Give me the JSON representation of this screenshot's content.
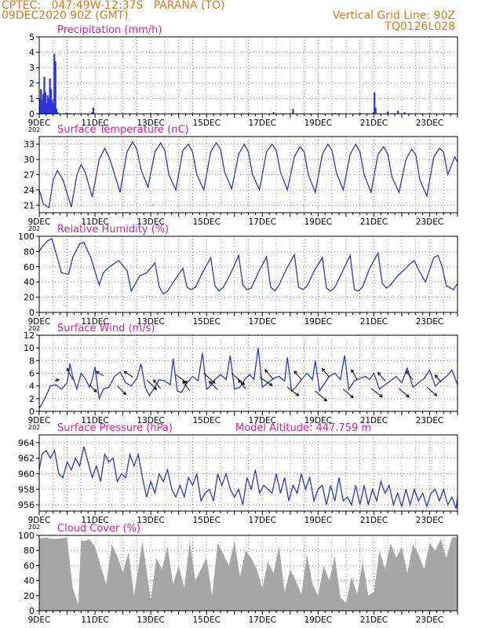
{
  "header": {
    "station_line": "CPTEC:   047:49W-12:37S   PARANA (TO)",
    "date_line": "09DEC2020 90Z (GMT)",
    "grid_line": "Vertical Grid Line: 90Z",
    "code": "TQ0126L028"
  },
  "colors": {
    "header": "#e0781a",
    "title": "#e0208c",
    "series": "#2a35d8",
    "cloud": "#a6a6a6",
    "grid": "#8a8a8a",
    "arrow": "#000000"
  },
  "chart_data": [
    {
      "id": "precip",
      "type": "bar",
      "title": "Precipitation (mm/h)",
      "ylim": [
        0,
        5
      ],
      "yticks": [
        0,
        1,
        2,
        3,
        4,
        5
      ],
      "xlim": [
        9,
        24
      ],
      "xticks": [
        "9DEC",
        "11DEC",
        "13DEC",
        "15DEC",
        "17DEC",
        "19DEC",
        "21DEC",
        "23DEC"
      ],
      "xlabel_suffix": "202",
      "grid": true,
      "x": [
        9.02,
        9.06,
        9.1,
        9.14,
        9.18,
        9.22,
        9.26,
        9.3,
        9.34,
        9.38,
        9.42,
        9.46,
        9.5,
        9.54,
        9.58,
        9.62,
        9.66,
        9.98,
        10.1,
        10.9,
        10.94,
        13.2,
        17.4,
        18.1,
        19.6,
        20.5,
        20.98,
        21.02,
        21.06,
        21.5,
        21.86,
        22.1
      ],
      "values": [
        1.0,
        1.6,
        0.9,
        1.3,
        2.4,
        1.4,
        0.7,
        1.2,
        1.0,
        2.3,
        1.6,
        0.9,
        0.7,
        3.9,
        3.4,
        0.3,
        0.1,
        0.05,
        0.05,
        0.1,
        0.4,
        0.05,
        0.1,
        0.3,
        0.05,
        0.05,
        0.1,
        1.4,
        0.4,
        0.15,
        0.2,
        0.1
      ]
    },
    {
      "id": "temp",
      "type": "line",
      "title": "Surface Temperature (nC)",
      "ylim": [
        19.5,
        34.5
      ],
      "yticks": [
        21,
        24,
        27,
        30,
        33
      ],
      "xlim": [
        9,
        24
      ],
      "xticks": [
        "9DEC",
        "11DEC",
        "13DEC",
        "15DEC",
        "17DEC",
        "19DEC",
        "21DEC",
        "23DEC"
      ],
      "xlabel_suffix": "202",
      "grid": true,
      "x": [
        9.0,
        9.15,
        9.35,
        9.5,
        9.65,
        9.85,
        10.15,
        10.35,
        10.5,
        10.65,
        10.9,
        11.15,
        11.35,
        11.5,
        11.65,
        11.9,
        12.15,
        12.35,
        12.5,
        12.65,
        12.9,
        13.15,
        13.35,
        13.5,
        13.65,
        13.9,
        14.15,
        14.35,
        14.5,
        14.65,
        14.9,
        15.15,
        15.35,
        15.5,
        15.65,
        15.9,
        16.15,
        16.35,
        16.5,
        16.65,
        16.9,
        17.15,
        17.35,
        17.5,
        17.65,
        17.9,
        18.15,
        18.35,
        18.5,
        18.65,
        18.9,
        19.15,
        19.35,
        19.5,
        19.65,
        19.9,
        20.15,
        20.35,
        20.5,
        20.65,
        20.9,
        21.15,
        21.35,
        21.5,
        21.65,
        21.9,
        22.15,
        22.35,
        22.5,
        22.65,
        22.9,
        23.15,
        23.35,
        23.5,
        23.65,
        23.9,
        24.0
      ],
      "values": [
        24,
        21.2,
        20.5,
        26,
        27.8,
        26,
        20.6,
        27,
        29,
        27.5,
        22.6,
        30,
        32.2,
        30.5,
        28,
        23.5,
        31.5,
        33.5,
        32,
        28,
        24.5,
        31.5,
        33.2,
        31.8,
        27,
        24,
        31.8,
        33,
        31.5,
        27,
        24,
        31.5,
        33.3,
        32,
        27.5,
        24.2,
        31,
        33,
        31.5,
        27,
        24,
        31.5,
        33,
        31.8,
        27.5,
        24,
        30.5,
        32.5,
        31.5,
        27,
        23.5,
        31,
        33,
        31.8,
        27.5,
        24,
        31,
        33,
        31.5,
        27,
        23.5,
        31,
        32.5,
        31,
        26.5,
        23.5,
        30,
        32,
        31,
        26,
        22.8,
        30.5,
        32.2,
        31.5,
        27,
        30.5,
        29.5
      ]
    },
    {
      "id": "rh",
      "type": "line",
      "title": "Relative Humidity (%)",
      "ylim": [
        0,
        100
      ],
      "yticks": [
        0,
        20,
        40,
        60,
        80,
        100
      ],
      "xlim": [
        9,
        24
      ],
      "xticks": [
        "9DEC",
        "11DEC",
        "13DEC",
        "15DEC",
        "17DEC",
        "19DEC",
        "21DEC",
        "23DEC"
      ],
      "xlabel_suffix": "202",
      "grid": true,
      "x": [
        9.0,
        9.1,
        9.3,
        9.45,
        9.65,
        9.8,
        10.05,
        10.2,
        10.45,
        10.6,
        10.85,
        11.15,
        11.3,
        11.45,
        11.6,
        11.85,
        12.15,
        12.3,
        12.45,
        12.6,
        12.85,
        13.15,
        13.3,
        13.45,
        13.6,
        13.85,
        14.15,
        14.3,
        14.45,
        14.6,
        14.85,
        15.15,
        15.3,
        15.45,
        15.6,
        15.85,
        16.15,
        16.3,
        16.45,
        16.6,
        16.85,
        17.15,
        17.3,
        17.45,
        17.6,
        17.85,
        18.15,
        18.3,
        18.45,
        18.6,
        18.85,
        19.15,
        19.3,
        19.45,
        19.6,
        19.85,
        20.15,
        20.3,
        20.45,
        20.6,
        20.85,
        21.15,
        21.3,
        21.45,
        21.6,
        21.85,
        22.15,
        22.3,
        22.45,
        22.6,
        22.85,
        23.15,
        23.3,
        23.45,
        23.6,
        23.85,
        24.0
      ],
      "values": [
        80,
        86,
        94,
        97,
        72,
        52,
        50,
        72,
        90,
        92,
        72,
        36,
        52,
        58,
        62,
        68,
        55,
        28,
        38,
        48,
        52,
        65,
        34,
        24,
        28,
        42,
        58,
        33,
        30,
        33,
        52,
        72,
        35,
        28,
        33,
        50,
        75,
        36,
        30,
        32,
        52,
        73,
        33,
        28,
        36,
        56,
        76,
        33,
        30,
        34,
        54,
        72,
        32,
        28,
        33,
        52,
        75,
        30,
        28,
        34,
        58,
        78,
        38,
        32,
        36,
        48,
        58,
        64,
        68,
        56,
        40,
        72,
        75,
        60,
        35,
        30,
        38
      ]
    },
    {
      "id": "wind",
      "type": "line",
      "title": "Surface Wind (m/s)",
      "ylim": [
        0,
        12
      ],
      "yticks": [
        0,
        2,
        4,
        6,
        8,
        10,
        12
      ],
      "xlim": [
        9,
        24
      ],
      "xticks": [
        "9DEC",
        "11DEC",
        "13DEC",
        "15DEC",
        "17DEC",
        "19DEC",
        "21DEC",
        "23DEC"
      ],
      "xlabel_suffix": "202",
      "grid": true,
      "x": [
        9.0,
        9.1,
        9.25,
        9.4,
        9.6,
        9.8,
        10.0,
        10.1,
        10.2,
        10.35,
        10.5,
        10.65,
        10.8,
        10.9,
        11.0,
        11.15,
        11.3,
        11.5,
        11.7,
        11.9,
        12.1,
        12.3,
        12.5,
        12.65,
        12.8,
        12.95,
        13.1,
        13.3,
        13.5,
        13.7,
        13.8,
        13.95,
        14.1,
        14.3,
        14.5,
        14.7,
        14.85,
        15.0,
        15.1,
        15.3,
        15.5,
        15.7,
        15.85,
        16.0,
        16.2,
        16.4,
        16.55,
        16.7,
        16.85,
        17.0,
        17.2,
        17.4,
        17.6,
        17.8,
        17.9,
        18.05,
        18.2,
        18.4,
        18.6,
        18.8,
        18.9,
        19.05,
        19.2,
        19.4,
        19.6,
        19.8,
        19.95,
        20.1,
        20.3,
        20.5,
        20.7,
        20.85,
        21.0,
        21.2,
        21.4,
        21.6,
        21.8,
        22.0,
        22.2,
        22.4,
        22.6,
        22.8,
        23.0,
        23.2,
        23.4,
        23.6,
        23.8,
        24.0
      ],
      "values": [
        0.5,
        1.2,
        2.5,
        4.0,
        4.2,
        3.5,
        4.5,
        7.5,
        5.5,
        3.5,
        6.0,
        5.2,
        3.8,
        5.0,
        7.0,
        2.0,
        3.5,
        3.8,
        5.5,
        6.2,
        4.5,
        4.0,
        5.2,
        7.5,
        3.8,
        2.5,
        3.5,
        5.0,
        4.8,
        4.2,
        8.3,
        3.2,
        3.0,
        4.5,
        5.5,
        4.8,
        9.2,
        3.5,
        3.8,
        5.0,
        5.8,
        5.0,
        8.8,
        3.5,
        3.8,
        5.2,
        5.8,
        5.0,
        10.0,
        3.8,
        4.5,
        5.2,
        5.5,
        4.8,
        8.5,
        3.2,
        3.8,
        5.0,
        6.0,
        5.0,
        8.0,
        3.2,
        4.2,
        5.5,
        6.0,
        5.0,
        8.8,
        3.5,
        4.8,
        5.2,
        5.5,
        5.0,
        6.0,
        3.5,
        4.2,
        4.8,
        5.5,
        4.5,
        6.8,
        3.8,
        4.5,
        5.2,
        6.5,
        4.0,
        4.8,
        5.5,
        6.5,
        4.2
      ],
      "arrows": {
        "x": [
          9.55,
          10.2,
          10.8,
          11.3,
          11.8,
          12.35,
          12.85,
          13.35,
          13.9,
          14.4,
          14.9,
          15.4,
          15.9,
          16.4,
          16.9,
          17.4,
          17.9,
          18.4,
          18.9,
          19.4,
          19.9,
          20.4,
          20.9,
          21.4,
          21.9,
          22.4,
          22.9,
          23.4
        ],
        "y": [
          4.8,
          5.0,
          4.2,
          5.6,
          4.0,
          5.4,
          5.0,
          3.6,
          5.8,
          3.2,
          6.0,
          3.4,
          6.0,
          3.6,
          5.4,
          5.0,
          3.8,
          5.0,
          3.2,
          5.4,
          3.5,
          5.0,
          3.6,
          4.8,
          3.6,
          5.0,
          3.8,
          4.6
        ],
        "u": [
          0.3,
          -0.4,
          0.5,
          -0.5,
          0.6,
          -0.6,
          0.7,
          -0.5,
          0.8,
          -0.5,
          0.8,
          -0.6,
          0.9,
          -0.5,
          0.9,
          -0.6,
          0.8,
          -0.5,
          0.8,
          -0.5,
          0.7,
          -0.4,
          0.8,
          -0.5,
          0.7,
          -0.5,
          0.7,
          -0.4
        ],
        "v": [
          0.1,
          0.8,
          -0.5,
          0.3,
          -0.6,
          0.4,
          -0.7,
          0.6,
          -0.6,
          0.7,
          -0.7,
          0.6,
          -0.8,
          0.6,
          -0.6,
          0.7,
          -0.6,
          0.6,
          -0.7,
          0.6,
          -0.6,
          0.7,
          -0.6,
          0.6,
          -0.6,
          0.6,
          -0.6,
          0.5
        ]
      }
    },
    {
      "id": "pressure",
      "type": "line",
      "title": "Surface Pressure (hPa)",
      "subtitle": "Model Altitude: 447.759  m",
      "ylim": [
        955.2,
        965
      ],
      "yticks": [
        956,
        958,
        960,
        962,
        964
      ],
      "xlim": [
        9,
        24
      ],
      "xticks": [
        "9DEC",
        "11DEC",
        "13DEC",
        "15DEC",
        "17DEC",
        "19DEC",
        "21DEC",
        "23DEC"
      ],
      "xlabel_suffix": "202",
      "grid": true,
      "x": [
        9.0,
        9.1,
        9.25,
        9.4,
        9.55,
        9.7,
        9.85,
        10.0,
        10.15,
        10.3,
        10.45,
        10.6,
        10.75,
        10.9,
        11.05,
        11.2,
        11.35,
        11.5,
        11.65,
        11.8,
        11.95,
        12.1,
        12.25,
        12.4,
        12.55,
        12.7,
        12.85,
        13.0,
        13.15,
        13.3,
        13.45,
        13.6,
        13.75,
        13.9,
        14.05,
        14.2,
        14.35,
        14.5,
        14.65,
        14.8,
        14.95,
        15.1,
        15.25,
        15.4,
        15.55,
        15.7,
        15.85,
        16.0,
        16.15,
        16.3,
        16.45,
        16.6,
        16.75,
        16.9,
        17.05,
        17.2,
        17.35,
        17.5,
        17.65,
        17.8,
        17.95,
        18.1,
        18.25,
        18.4,
        18.55,
        18.7,
        18.85,
        19.0,
        19.15,
        19.3,
        19.45,
        19.6,
        19.75,
        19.9,
        20.05,
        20.2,
        20.35,
        20.5,
        20.65,
        20.8,
        20.95,
        21.1,
        21.25,
        21.4,
        21.55,
        21.7,
        21.85,
        22.0,
        22.15,
        22.3,
        22.45,
        22.6,
        22.75,
        22.9,
        23.05,
        23.2,
        23.35,
        23.5,
        23.65,
        23.8,
        23.95,
        24.0
      ],
      "values": [
        960.5,
        962.5,
        963.0,
        962.0,
        963.0,
        960.0,
        959.5,
        961.5,
        960.5,
        962.0,
        961.0,
        963.5,
        961.5,
        959.5,
        961.0,
        959.0,
        962.5,
        961.5,
        962.0,
        959.0,
        960.0,
        959.5,
        962.5,
        961.0,
        962.5,
        959.5,
        957.0,
        959.0,
        957.5,
        960.0,
        959.0,
        960.5,
        958.0,
        957.0,
        958.5,
        957.0,
        959.5,
        958.5,
        960.0,
        956.5,
        957.5,
        958.0,
        956.5,
        960.0,
        958.5,
        960.0,
        958.0,
        957.0,
        958.0,
        956.0,
        959.5,
        958.0,
        960.5,
        957.5,
        958.5,
        958.0,
        957.5,
        960.0,
        957.5,
        959.5,
        956.5,
        958.5,
        957.5,
        960.0,
        958.0,
        959.5,
        956.5,
        958.0,
        958.5,
        956.0,
        958.5,
        956.5,
        959.5,
        956.5,
        957.0,
        956.0,
        958.5,
        956.0,
        958.5,
        956.0,
        958.0,
        956.5,
        959.0,
        957.5,
        958.5,
        956.0,
        957.5,
        955.8,
        958.0,
        956.0,
        958.0,
        956.5,
        957.5,
        955.8,
        957.5,
        958.0,
        956.5,
        958.0,
        956.0,
        957.0,
        955.5,
        957.0
      ]
    },
    {
      "id": "cloud",
      "type": "area",
      "title": "Cloud Cover (%)",
      "ylim": [
        0,
        100
      ],
      "yticks": [
        0,
        20,
        40,
        60,
        80,
        100
      ],
      "xlim": [
        9,
        24
      ],
      "xticks": [
        "9DEC",
        "11DEC",
        "13DEC",
        "15DEC",
        "17DEC",
        "19DEC",
        "21DEC",
        "23DEC"
      ],
      "grid": true,
      "x": [
        9.0,
        9.25,
        9.5,
        9.75,
        10.0,
        10.2,
        10.4,
        10.5,
        10.6,
        10.8,
        11.0,
        11.2,
        11.4,
        11.6,
        11.8,
        12.0,
        12.2,
        12.4,
        12.5,
        12.7,
        12.9,
        13.0,
        13.2,
        13.4,
        13.6,
        13.8,
        14.0,
        14.2,
        14.4,
        14.6,
        14.8,
        15.0,
        15.2,
        15.4,
        15.6,
        15.8,
        16.0,
        16.2,
        16.4,
        16.6,
        16.8,
        17.0,
        17.2,
        17.4,
        17.6,
        17.8,
        18.0,
        18.2,
        18.4,
        18.6,
        18.8,
        19.0,
        19.2,
        19.4,
        19.6,
        19.8,
        20.0,
        20.2,
        20.4,
        20.6,
        20.8,
        21.0,
        21.2,
        21.4,
        21.6,
        21.8,
        22.0,
        22.2,
        22.4,
        22.6,
        22.8,
        23.0,
        23.2,
        23.4,
        23.6,
        23.8,
        24.0
      ],
      "values": [
        96,
        97,
        95,
        96,
        97,
        30,
        8,
        94,
        92,
        95,
        85,
        60,
        35,
        88,
        72,
        50,
        78,
        20,
        45,
        92,
        40,
        15,
        70,
        55,
        85,
        35,
        60,
        30,
        92,
        40,
        55,
        70,
        20,
        90,
        75,
        60,
        92,
        45,
        80,
        70,
        55,
        30,
        65,
        50,
        85,
        25,
        55,
        40,
        22,
        75,
        35,
        20,
        60,
        40,
        72,
        18,
        10,
        45,
        22,
        65,
        20,
        25,
        80,
        55,
        90,
        70,
        85,
        50,
        88,
        75,
        55,
        90,
        80,
        95,
        70,
        97,
        98
      ]
    }
  ]
}
